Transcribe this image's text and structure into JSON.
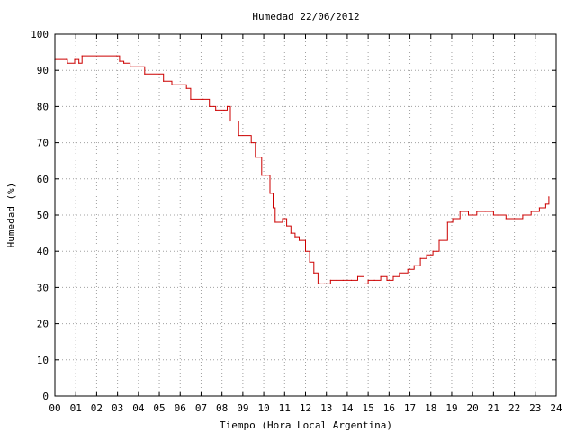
{
  "chart_data": {
    "type": "line",
    "title": "Humedad 22/06/2012",
    "xlabel": "Tiempo (Hora Local Argentina)",
    "ylabel": "Humedad (%)",
    "xlim": [
      0,
      24
    ],
    "ylim": [
      0,
      100
    ],
    "grid": true,
    "x_ticks": [
      "00",
      "01",
      "02",
      "03",
      "04",
      "05",
      "06",
      "07",
      "08",
      "09",
      "10",
      "11",
      "12",
      "13",
      "14",
      "15",
      "16",
      "17",
      "18",
      "19",
      "20",
      "21",
      "22",
      "23",
      "24"
    ],
    "y_ticks": [
      "0",
      "10",
      "20",
      "30",
      "40",
      "50",
      "60",
      "70",
      "80",
      "90",
      "100"
    ],
    "series": [
      {
        "color": "#cc0000",
        "x": [
          0.0,
          0.55,
          0.6,
          0.95,
          1.15,
          1.3,
          2.95,
          3.1,
          3.3,
          3.6,
          4.3,
          5.2,
          5.6,
          6.3,
          6.5,
          7.1,
          7.4,
          7.7,
          8.1,
          8.25,
          8.4,
          8.8,
          9.2,
          9.4,
          9.6,
          9.9,
          10.1,
          10.3,
          10.45,
          10.55,
          10.9,
          11.1,
          11.3,
          11.5,
          11.7,
          12.0,
          12.2,
          12.4,
          12.6,
          12.7,
          12.9,
          13.2,
          13.5,
          13.8,
          14.2,
          14.5,
          14.8,
          15.0,
          15.3,
          15.6,
          15.9,
          16.2,
          16.5,
          16.9,
          17.2,
          17.5,
          17.8,
          18.1,
          18.4,
          18.8,
          19.05,
          19.4,
          19.8,
          20.2,
          20.6,
          21.0,
          21.2,
          21.6,
          22.0,
          22.4,
          22.8,
          23.2,
          23.5,
          23.65
        ],
        "y": [
          93,
          93,
          92,
          93,
          92,
          94,
          94,
          92.5,
          92,
          91,
          89,
          87,
          86,
          85,
          82,
          82,
          80,
          79,
          79,
          80,
          76,
          72,
          72,
          70,
          66,
          61,
          61,
          56,
          52,
          48,
          49,
          47,
          45,
          44,
          43,
          40,
          37,
          34,
          31,
          31,
          31,
          32,
          32,
          32,
          32,
          33,
          31,
          32,
          32,
          33,
          32,
          33,
          34,
          35,
          36,
          38,
          39,
          40,
          43,
          48,
          49,
          51,
          50,
          51,
          51,
          50,
          50,
          49,
          49,
          50,
          51,
          52,
          53,
          55
        ]
      }
    ]
  }
}
